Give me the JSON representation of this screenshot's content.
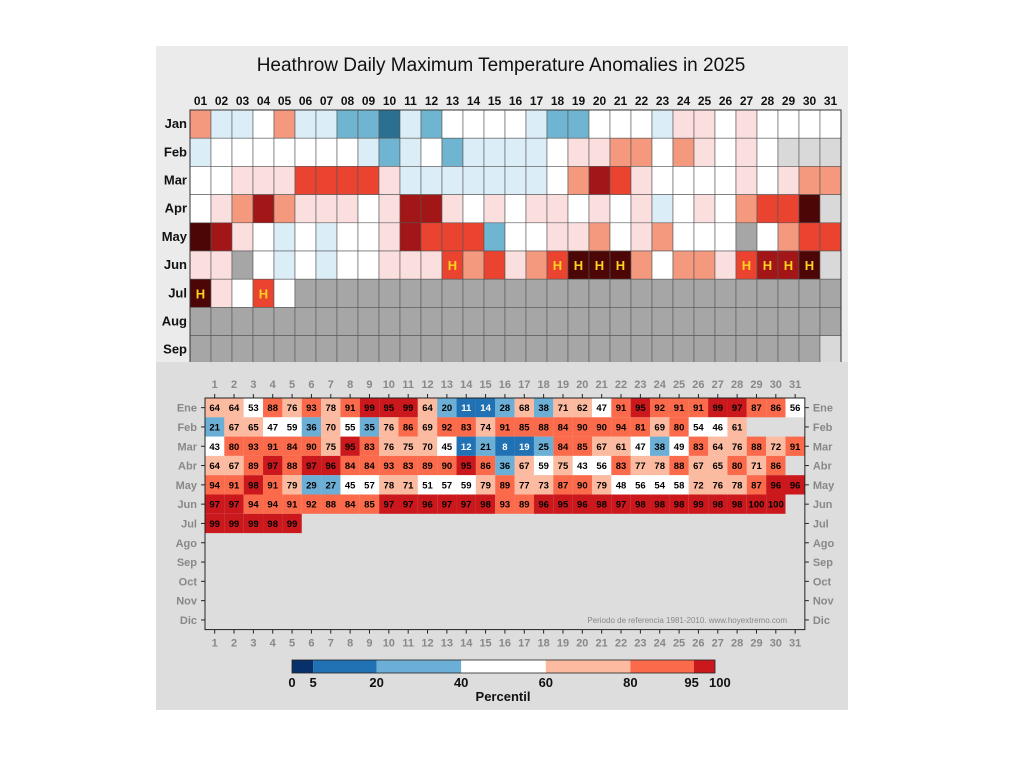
{
  "chart_data": [
    {
      "type": "heatmap",
      "title": "Heathrow Daily Maximum Temperature Anomalies in 2025",
      "x_labels": [
        "01",
        "02",
        "03",
        "04",
        "05",
        "06",
        "07",
        "08",
        "09",
        "10",
        "11",
        "12",
        "13",
        "14",
        "15",
        "16",
        "17",
        "18",
        "19",
        "20",
        "21",
        "22",
        "23",
        "24",
        "25",
        "26",
        "27",
        "28",
        "29",
        "30",
        "31"
      ],
      "y_labels": [
        "Jan",
        "Feb",
        "Mar",
        "Apr",
        "May",
        "Jun",
        "Jul",
        "Aug",
        "Sep"
      ],
      "color_scale": {
        "-3": "#2b6f91",
        "-2": "#6fb5d2",
        "-1": "#dbeef8",
        "0": "#ffffff",
        "1": "#fbdede",
        "2": "#f4987e",
        "3": "#ea4431",
        "4": "#a31618",
        "5": "#4d0606",
        "missing": "#a6a6a6",
        "invalid": "#d9d9d9",
        "grid": "#555555"
      },
      "rows": [
        [
          2,
          -1,
          -1,
          0,
          2,
          -1,
          -1,
          -2,
          -2,
          -3,
          -1,
          -2,
          0,
          0,
          0,
          0,
          -1,
          -2,
          -2,
          0,
          0,
          0,
          -1,
          1,
          1,
          0,
          1,
          0,
          0,
          0,
          0
        ],
        [
          -1,
          0,
          0,
          0,
          0,
          0,
          0,
          0,
          -1,
          -2,
          -1,
          0,
          -2,
          -1,
          -1,
          -1,
          -1,
          0,
          1,
          1,
          2,
          2,
          0,
          2,
          1,
          0,
          1,
          0,
          "x",
          "x",
          "x"
        ],
        [
          0,
          0,
          1,
          1,
          1,
          3,
          3,
          3,
          3,
          1,
          -1,
          -1,
          -1,
          -1,
          -1,
          -1,
          -1,
          0,
          2,
          4,
          3,
          1,
          0,
          0,
          0,
          0,
          1,
          0,
          1,
          2,
          2
        ],
        [
          0,
          1,
          2,
          4,
          2,
          1,
          1,
          1,
          0,
          1,
          4,
          4,
          1,
          0,
          1,
          0,
          1,
          1,
          0,
          1,
          0,
          1,
          -1,
          0,
          1,
          0,
          2,
          3,
          3,
          5,
          "x"
        ],
        [
          5,
          4,
          1,
          0,
          -1,
          0,
          -1,
          0,
          0,
          1,
          4,
          3,
          3,
          3,
          -2,
          0,
          0,
          1,
          1,
          2,
          0,
          1,
          2,
          0,
          0,
          0,
          "m",
          0,
          2,
          3,
          3
        ],
        [
          1,
          1,
          "m",
          0,
          -1,
          0,
          -1,
          0,
          0,
          1,
          1,
          1,
          3,
          2,
          3,
          1,
          2,
          3,
          5,
          5,
          5,
          2,
          0,
          2,
          2,
          1,
          3,
          4,
          4,
          5,
          "x"
        ],
        [
          5,
          1,
          0,
          3,
          0,
          "m",
          "m",
          "m",
          "m",
          "m",
          "m",
          "m",
          "m",
          "m",
          "m",
          "m",
          "m",
          "m",
          "m",
          "m",
          "m",
          "m",
          "m",
          "m",
          "m",
          "m",
          "m",
          "m",
          "m",
          "m",
          "m"
        ],
        [
          "m",
          "m",
          "m",
          "m",
          "m",
          "m",
          "m",
          "m",
          "m",
          "m",
          "m",
          "m",
          "m",
          "m",
          "m",
          "m",
          "m",
          "m",
          "m",
          "m",
          "m",
          "m",
          "m",
          "m",
          "m",
          "m",
          "m",
          "m",
          "m",
          "m",
          "m"
        ],
        [
          "m",
          "m",
          "m",
          "m",
          "m",
          "m",
          "m",
          "m",
          "m",
          "m",
          "m",
          "m",
          "m",
          "m",
          "m",
          "m",
          "m",
          "m",
          "m",
          "m",
          "m",
          "m",
          "m",
          "m",
          "m",
          "m",
          "m",
          "m",
          "m",
          "m",
          "x"
        ]
      ],
      "markers": [
        {
          "month": "Jun",
          "day": "13",
          "text": "H"
        },
        {
          "month": "Jun",
          "day": "18",
          "text": "H"
        },
        {
          "month": "Jun",
          "day": "19",
          "text": "H"
        },
        {
          "month": "Jun",
          "day": "20",
          "text": "H"
        },
        {
          "month": "Jun",
          "day": "21",
          "text": "H"
        },
        {
          "month": "Jun",
          "day": "27",
          "text": "H"
        },
        {
          "month": "Jun",
          "day": "28",
          "text": "H"
        },
        {
          "month": "Jun",
          "day": "29",
          "text": "H"
        },
        {
          "month": "Jun",
          "day": "30",
          "text": "H"
        },
        {
          "month": "Jul",
          "day": "01",
          "text": "H"
        },
        {
          "month": "Jul",
          "day": "04",
          "text": "H"
        }
      ],
      "marker_color": "#ffd21f"
    },
    {
      "type": "heatmap",
      "x_labels": [
        "1",
        "2",
        "3",
        "4",
        "5",
        "6",
        "7",
        "8",
        "9",
        "10",
        "11",
        "12",
        "13",
        "14",
        "15",
        "16",
        "17",
        "18",
        "19",
        "20",
        "21",
        "22",
        "23",
        "24",
        "25",
        "26",
        "27",
        "28",
        "29",
        "30",
        "31"
      ],
      "y_labels_left": [
        "Ene",
        "Feb",
        "Mar",
        "Abr",
        "May",
        "Jun",
        "Jul",
        "Ago",
        "Sep",
        "Oct",
        "Nov",
        "Dic"
      ],
      "y_labels_right": [
        "Ene",
        "Feb",
        "Mar",
        "Abr",
        "May",
        "Jun",
        "Jul",
        "Ago",
        "Sep",
        "Oct",
        "Nov",
        "Dic"
      ],
      "values": [
        [
          64,
          64,
          53,
          88,
          76,
          93,
          78,
          91,
          99,
          95,
          99,
          64,
          20,
          11,
          14,
          28,
          68,
          38,
          71,
          62,
          47,
          91,
          95,
          92,
          91,
          91,
          99,
          97,
          87,
          86,
          56
        ],
        [
          21,
          67,
          65,
          47,
          59,
          36,
          70,
          55,
          35,
          76,
          86,
          69,
          92,
          83,
          74,
          91,
          85,
          88,
          84,
          90,
          90,
          94,
          81,
          69,
          80,
          54,
          46,
          61,
          null,
          null,
          null
        ],
        [
          43,
          80,
          93,
          91,
          84,
          90,
          75,
          95,
          83,
          76,
          75,
          70,
          45,
          12,
          21,
          8,
          19,
          25,
          84,
          85,
          67,
          61,
          47,
          38,
          49,
          83,
          64,
          76,
          88,
          72,
          91
        ],
        [
          64,
          67,
          89,
          97,
          88,
          97,
          96,
          84,
          84,
          93,
          83,
          89,
          90,
          95,
          86,
          36,
          67,
          59,
          75,
          43,
          56,
          83,
          77,
          78,
          88,
          67,
          65,
          80,
          71,
          86,
          null
        ],
        [
          94,
          91,
          98,
          91,
          79,
          29,
          27,
          45,
          57,
          78,
          71,
          51,
          57,
          59,
          79,
          89,
          77,
          73,
          87,
          90,
          79,
          48,
          56,
          54,
          58,
          72,
          76,
          78,
          87,
          96,
          96
        ],
        [
          97,
          97,
          94,
          94,
          91,
          92,
          88,
          84,
          85,
          97,
          97,
          96,
          97,
          97,
          98,
          93,
          89,
          96,
          95,
          96,
          98,
          97,
          98,
          98,
          98,
          99,
          98,
          98,
          100,
          100,
          null
        ],
        [
          99,
          99,
          99,
          98,
          99,
          null,
          null,
          null,
          null,
          null,
          null,
          null,
          null,
          null,
          null,
          null,
          null,
          null,
          null,
          null,
          null,
          null,
          null,
          null,
          null,
          null,
          null,
          null,
          null,
          null,
          null
        ],
        [
          null,
          null,
          null,
          null,
          null,
          null,
          null,
          null,
          null,
          null,
          null,
          null,
          null,
          null,
          null,
          null,
          null,
          null,
          null,
          null,
          null,
          null,
          null,
          null,
          null,
          null,
          null,
          null,
          null,
          null,
          null
        ],
        [
          null,
          null,
          null,
          null,
          null,
          null,
          null,
          null,
          null,
          null,
          null,
          null,
          null,
          null,
          null,
          null,
          null,
          null,
          null,
          null,
          null,
          null,
          null,
          null,
          null,
          null,
          null,
          null,
          null,
          null,
          null
        ],
        [
          null,
          null,
          null,
          null,
          null,
          null,
          null,
          null,
          null,
          null,
          null,
          null,
          null,
          null,
          null,
          null,
          null,
          null,
          null,
          null,
          null,
          null,
          null,
          null,
          null,
          null,
          null,
          null,
          null,
          null,
          null
        ],
        [
          null,
          null,
          null,
          null,
          null,
          null,
          null,
          null,
          null,
          null,
          null,
          null,
          null,
          null,
          null,
          null,
          null,
          null,
          null,
          null,
          null,
          null,
          null,
          null,
          null,
          null,
          null,
          null,
          null,
          null,
          null
        ],
        [
          null,
          null,
          null,
          null,
          null,
          null,
          null,
          null,
          null,
          null,
          null,
          null,
          null,
          null,
          null,
          null,
          null,
          null,
          null,
          null,
          null,
          null,
          null,
          null,
          null,
          null,
          null,
          null,
          null,
          null,
          null
        ]
      ],
      "annotation": "Periodo de referencia 1981-2010. www.hoyextremo.com",
      "colorbar": {
        "label": "Percentil",
        "range": [
          0,
          100
        ],
        "bins": [
          {
            "from": 0,
            "to": 5,
            "color": "#08306b"
          },
          {
            "from": 5,
            "to": 20,
            "color": "#2171b5"
          },
          {
            "from": 20,
            "to": 40,
            "color": "#6baed6"
          },
          {
            "from": 40,
            "to": 60,
            "color": "#ffffff"
          },
          {
            "from": 60,
            "to": 80,
            "color": "#fcbba1"
          },
          {
            "from": 80,
            "to": 95,
            "color": "#fb6a4a"
          },
          {
            "from": 95,
            "to": 100,
            "color": "#cb181d"
          }
        ],
        "ticks": [
          {
            "value": 0,
            "label": "0"
          },
          {
            "value": 5,
            "label": "5"
          },
          {
            "value": 20,
            "label": "20"
          },
          {
            "value": 40,
            "label": "40"
          },
          {
            "value": 60,
            "label": "60"
          },
          {
            "value": 80,
            "label": "80"
          },
          {
            "value": 95,
            "label": "95"
          },
          {
            "value": 100,
            "label": "100"
          }
        ]
      },
      "colors": {
        "panel_bg": "#dddddd",
        "tick_label": "#888888",
        "annotation": "#888888",
        "text_on_dark": "#ffffff",
        "text_on_light": "#000000"
      }
    }
  ]
}
